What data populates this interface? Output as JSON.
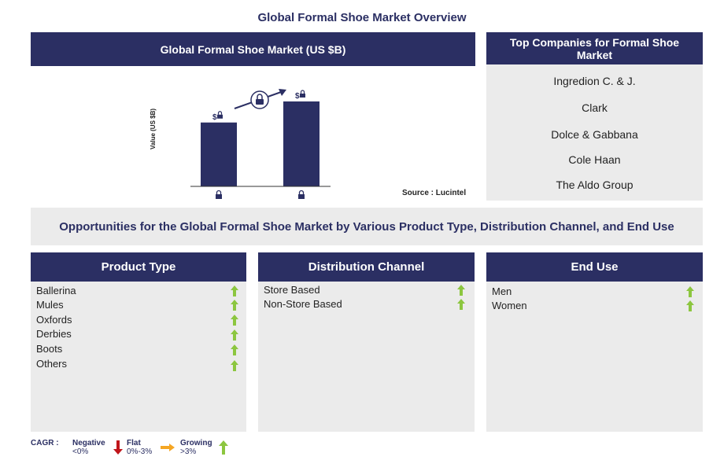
{
  "page_title": "Global Formal Shoe Market Overview",
  "market_panel": {
    "header": "Global Formal Shoe Market (US $B)",
    "y_axis_label": "Value (US $B)",
    "bar_top_label": "$",
    "source": "Source : Lucintel"
  },
  "chart_data": {
    "type": "bar",
    "categories": [
      "",
      ""
    ],
    "values": [
      88,
      117
    ],
    "title": "Global Formal Shoe Market (US $B)",
    "xlabel": "",
    "ylabel": "Value (US $B)",
    "note": "values locked/hidden in original"
  },
  "companies_panel": {
    "header": "Top Companies for Formal Shoe Market",
    "items": [
      "Ingredion C. & J.",
      "Clark",
      "Dolce & Gabbana",
      "Cole Haan",
      "The Aldo Group"
    ]
  },
  "opportunities_banner": "Opportunities for the Global Formal Shoe Market by Various Product Type, Distribution Channel, and End Use",
  "segments": [
    {
      "header": "Product Type",
      "items": [
        "Ballerina",
        "Mules",
        "Oxfords",
        "Derbies",
        "Boots",
        "Others"
      ]
    },
    {
      "header": "Distribution Channel",
      "items": [
        "Store Based",
        "Non-Store Based"
      ]
    },
    {
      "header": "End Use",
      "items": [
        "Men",
        "Women"
      ]
    }
  ],
  "legend": {
    "cagr_label": "CAGR :",
    "negative_label": "Negative",
    "negative_range": "<0%",
    "flat_label": "Flat",
    "flat_range": "0%-3%",
    "growing_label": "Growing",
    "growing_range": ">3%"
  },
  "colors": {
    "navy": "#2b2f63",
    "panel_grey": "#ebebeb",
    "growing_green": "#8cc63f",
    "flat_orange": "#f5a623",
    "negative_red": "#c0151b"
  }
}
